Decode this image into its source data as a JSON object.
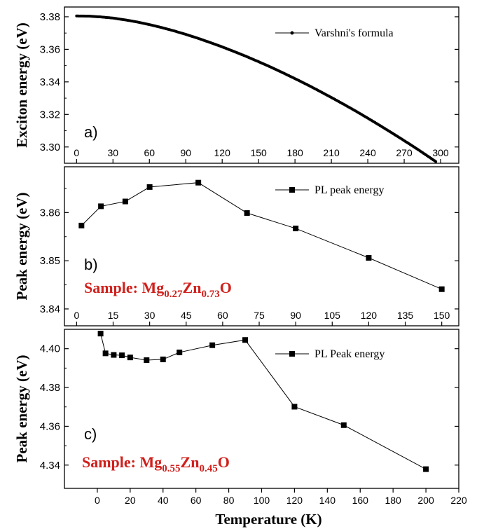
{
  "chart_data": [
    {
      "panel": "a)",
      "type": "line",
      "ylabel": "Exciton energy (eV)",
      "xlim": [
        -10,
        315
      ],
      "ylim": [
        3.29,
        3.386
      ],
      "yticks": [
        3.3,
        3.32,
        3.34,
        3.36,
        3.38
      ],
      "ytick_labels": [
        "3.30",
        "3.32",
        "3.34",
        "3.36",
        "3.38"
      ],
      "xticks": [
        0,
        30,
        60,
        90,
        120,
        150,
        180,
        210,
        240,
        270,
        300
      ],
      "xtick_labels": [
        "0",
        "30",
        "60",
        "90",
        "120",
        "150",
        "180",
        "210",
        "240",
        "270",
        "300"
      ],
      "series": [
        {
          "name": "Varshni's formula",
          "marker": "dot",
          "x": [
            0,
            10,
            20,
            30,
            40,
            50,
            60,
            70,
            80,
            90,
            100,
            110,
            120,
            130,
            140,
            150,
            160,
            170,
            180,
            190,
            200,
            210,
            220,
            230,
            240,
            250,
            260,
            270,
            280,
            290,
            300
          ],
          "y": [
            3.3805,
            3.3804,
            3.3799,
            3.3792,
            3.3781,
            3.3768,
            3.3752,
            3.3734,
            3.3714,
            3.3692,
            3.3668,
            3.3642,
            3.3615,
            3.3586,
            3.3556,
            3.3524,
            3.3491,
            3.3456,
            3.342,
            3.3383,
            3.3344,
            3.3304,
            3.3263,
            3.3221,
            3.3177,
            3.3132,
            3.3086,
            3.3039,
            3.2991,
            3.2941,
            3.289
          ]
        }
      ],
      "legend_position": "top-right"
    },
    {
      "panel": "b)",
      "type": "line",
      "ylabel": "Peak energy (eV)",
      "xlim": [
        -5,
        157
      ],
      "ylim": [
        3.8365,
        3.8695
      ],
      "yticks": [
        3.84,
        3.85,
        3.86
      ],
      "ytick_labels": [
        "3.84",
        "3.85",
        "3.86"
      ],
      "xticks": [
        0,
        15,
        30,
        45,
        60,
        75,
        90,
        105,
        120,
        135,
        150
      ],
      "xtick_labels": [
        "0",
        "15",
        "30",
        "45",
        "60",
        "75",
        "90",
        "105",
        "120",
        "135",
        "150"
      ],
      "series": [
        {
          "name": "PL peak energy",
          "marker": "square",
          "x": [
            2,
            10,
            20,
            30,
            50,
            70,
            90,
            120,
            150
          ],
          "y": [
            3.8573,
            3.8613,
            3.8623,
            3.8653,
            3.8662,
            3.8599,
            3.8567,
            3.8506,
            3.8441
          ]
        }
      ],
      "legend_position": "top-right",
      "sample_label": {
        "prefix": "Sample: Mg",
        "sub1": "0.27",
        "mid": "Zn",
        "sub2": "0.73",
        "suffix": "O"
      }
    },
    {
      "panel": "c)",
      "type": "line",
      "ylabel": "Peak energy (eV)",
      "xlabel": "Temperature (K)",
      "xlim": [
        -20,
        220
      ],
      "ylim": [
        4.328,
        4.41
      ],
      "yticks": [
        4.34,
        4.36,
        4.38,
        4.4
      ],
      "ytick_labels": [
        "4.34",
        "4.36",
        "4.38",
        "4.40"
      ],
      "xticks": [
        0,
        20,
        40,
        60,
        80,
        100,
        120,
        140,
        160,
        180,
        200,
        220
      ],
      "xtick_labels": [
        "0",
        "20",
        "40",
        "60",
        "80",
        "100",
        "120",
        "140",
        "160",
        "180",
        "200",
        "220"
      ],
      "series": [
        {
          "name": "PL Peak energy",
          "marker": "square",
          "x": [
            2,
            5,
            10,
            15,
            20,
            30,
            40,
            50,
            70,
            90,
            120,
            150,
            200
          ],
          "y": [
            4.4078,
            4.3976,
            4.3968,
            4.3966,
            4.3955,
            4.3941,
            4.3945,
            4.3981,
            4.4018,
            4.4045,
            4.3701,
            4.3606,
            4.3379
          ]
        }
      ],
      "legend_position": "top-right",
      "sample_label": {
        "prefix": "Sample: Mg",
        "sub1": "0.55",
        "mid": "Zn",
        "sub2": "0.45",
        "suffix": "O"
      }
    }
  ],
  "colors": {
    "axis": "#000000",
    "series": "#000000",
    "sample_text": "#d0201c"
  }
}
